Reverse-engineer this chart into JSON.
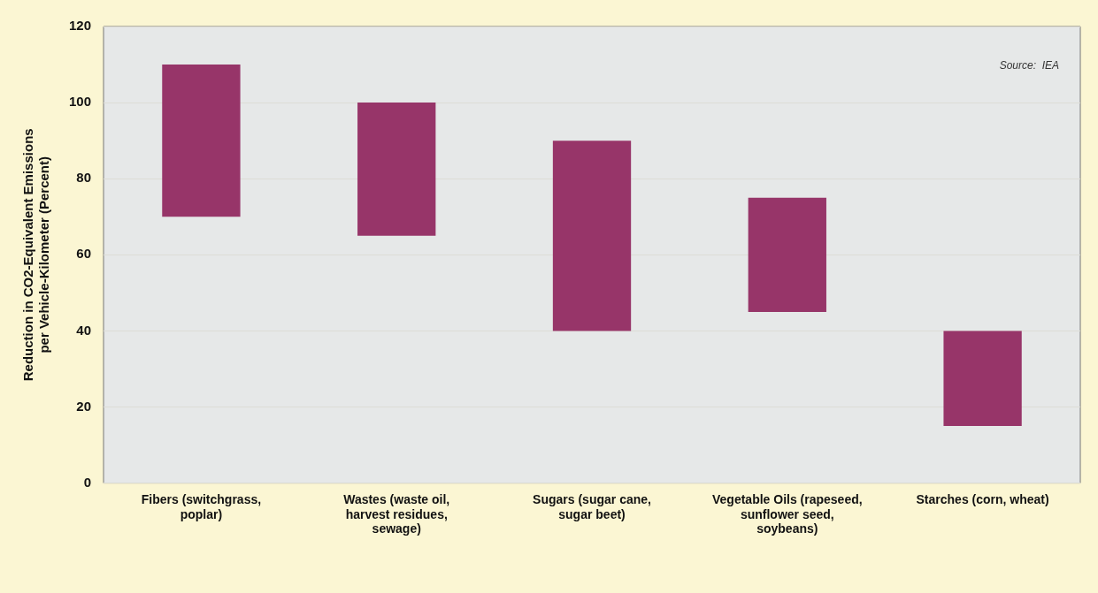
{
  "chart_data": {
    "type": "bar",
    "ylabel": "Reduction in CO2-Equivalent Emissions per Vehicle-Kilometer (Percent)",
    "categories": [
      "Fibers (switchgrass, poplar)",
      "Wastes (waste oil, harvest residues, sewage)",
      "Sugars (sugar cane, sugar beet)",
      "Vegetable Oils (rapeseed, sunflower seed, soybeans)",
      "Starches (corn, wheat)"
    ],
    "base": [
      70,
      65,
      40,
      45,
      15
    ],
    "values": [
      40,
      35,
      50,
      30,
      25
    ],
    "color": "#973569",
    "ylim": [
      0,
      120
    ],
    "yticks": [
      0,
      20,
      40,
      60,
      80,
      100,
      120
    ],
    "grid": "y",
    "annotations": [
      "Source:  IEA"
    ]
  }
}
